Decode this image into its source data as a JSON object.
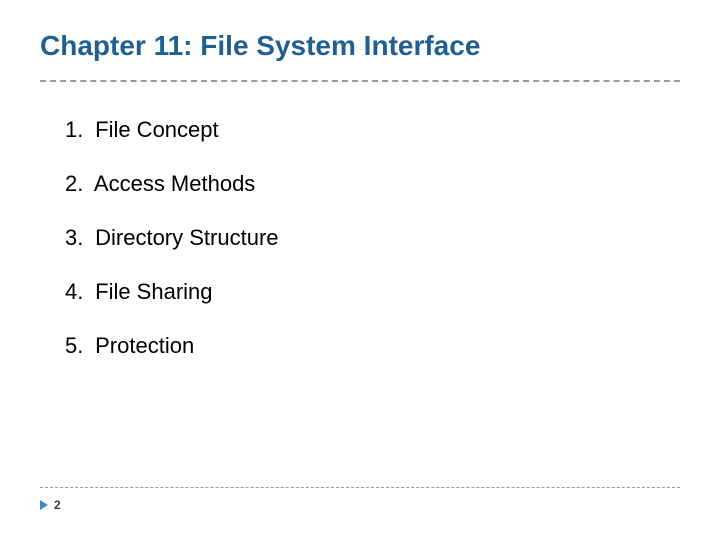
{
  "slide": {
    "title": "Chapter 11:  File System Interface",
    "title_color": "#1f6090",
    "title_fontsize": 28,
    "divider_color": "#999999",
    "divider_style": "dashed",
    "background_color": "#ffffff"
  },
  "list": {
    "items": [
      {
        "number": "1.",
        "text": "File Concept"
      },
      {
        "number": "2.",
        "text": "Access Methods"
      },
      {
        "number": "3.",
        "text": "Directory Structure"
      },
      {
        "number": "4.",
        "text": "File Sharing"
      },
      {
        "number": "5.",
        "text": "Protection"
      }
    ],
    "fontsize": 22,
    "text_color": "#000000",
    "item_spacing": 28
  },
  "footer": {
    "page_number": "2",
    "arrow_color": "#3b8bc4",
    "page_number_color": "#3b3b3b",
    "page_number_fontsize": 12,
    "divider_color": "#999999"
  }
}
